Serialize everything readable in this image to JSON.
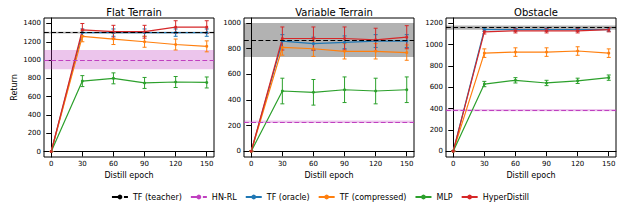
{
  "chart_data": [
    {
      "type": "line",
      "title": "Flat Terrain",
      "x_label": "Distill epoch",
      "y_label": "Return",
      "x": [
        0,
        30,
        60,
        90,
        120,
        150
      ],
      "xlim": [
        -7,
        157
      ],
      "xticks": [
        0,
        30,
        60,
        90,
        120,
        150
      ],
      "ylim": [
        -60,
        1460
      ],
      "yticks": [
        0,
        200,
        400,
        600,
        800,
        1000,
        1200,
        1400
      ],
      "series": [
        {
          "name": "TF (teacher)",
          "type": "hline",
          "color": "#000000",
          "line_style": "dashed",
          "value": 1300,
          "band": [
            1290,
            1310
          ]
        },
        {
          "name": "HN-RL",
          "type": "hline",
          "color": "#c040c0",
          "line_style": "dashed",
          "value": 1000,
          "band": [
            900,
            1110
          ]
        },
        {
          "name": "TF (oracle)",
          "color": "#1f77b4",
          "marker": "circle",
          "values": [
            0,
            1300,
            1300,
            1300,
            1300,
            1300
          ],
          "errors": [
            0,
            40,
            40,
            40,
            40,
            40
          ]
        },
        {
          "name": "TF (compressed)",
          "color": "#ff7f0e",
          "marker": "circle",
          "values": [
            0,
            1260,
            1230,
            1200,
            1170,
            1150
          ],
          "errors": [
            0,
            60,
            60,
            60,
            60,
            60
          ]
        },
        {
          "name": "MLP",
          "color": "#2ca02c",
          "marker": "circle",
          "values": [
            0,
            770,
            800,
            750,
            760,
            755
          ],
          "errors": [
            0,
            60,
            60,
            60,
            60,
            60
          ]
        },
        {
          "name": "HyperDistill",
          "color": "#d62728",
          "marker": "circle",
          "values": [
            0,
            1330,
            1310,
            1310,
            1360,
            1360
          ],
          "errors": [
            0,
            70,
            70,
            70,
            70,
            70
          ]
        }
      ]
    },
    {
      "type": "line",
      "title": "Variable Terrain",
      "x_label": "Distill epoch",
      "x": [
        0,
        30,
        60,
        90,
        120,
        150
      ],
      "xlim": [
        -7,
        157
      ],
      "xticks": [
        0,
        30,
        60,
        90,
        120,
        150
      ],
      "ylim": [
        -45,
        1040
      ],
      "yticks": [
        0,
        200,
        400,
        600,
        800,
        1000
      ],
      "series": [
        {
          "name": "TF (teacher)",
          "type": "hline",
          "color": "#000000",
          "line_style": "dashed",
          "value": 865,
          "band": [
            735,
            1000
          ]
        },
        {
          "name": "HN-RL",
          "type": "hline",
          "color": "#c040c0",
          "line_style": "dashed",
          "value": 230,
          "band": [
            220,
            240
          ]
        },
        {
          "name": "TF (oracle)",
          "color": "#1f77b4",
          "marker": "circle",
          "values": [
            0,
            860,
            840,
            850,
            860,
            860
          ],
          "errors": [
            0,
            50,
            50,
            50,
            50,
            50
          ]
        },
        {
          "name": "TF (compressed)",
          "color": "#ff7f0e",
          "marker": "circle",
          "values": [
            0,
            810,
            800,
            780,
            780,
            770
          ],
          "errors": [
            0,
            60,
            60,
            60,
            60,
            60
          ]
        },
        {
          "name": "MLP",
          "color": "#2ca02c",
          "marker": "circle",
          "values": [
            0,
            470,
            460,
            480,
            470,
            480
          ],
          "errors": [
            0,
            100,
            100,
            100,
            100,
            100
          ]
        },
        {
          "name": "HyperDistill",
          "color": "#d62728",
          "marker": "circle",
          "values": [
            0,
            880,
            880,
            880,
            870,
            890
          ],
          "errors": [
            0,
            90,
            90,
            90,
            90,
            90
          ]
        }
      ]
    },
    {
      "type": "line",
      "title": "Obstacle",
      "x_label": "Distill epoch",
      "legend": "bottom",
      "x": [
        0,
        30,
        60,
        90,
        120,
        150
      ],
      "xlim": [
        -7,
        157
      ],
      "xticks": [
        0,
        30,
        60,
        90,
        120,
        150
      ],
      "ylim": [
        -55,
        1250
      ],
      "yticks": [
        0,
        200,
        400,
        600,
        800,
        1000,
        1200
      ],
      "series": [
        {
          "name": "TF (teacher)",
          "type": "hline",
          "color": "#000000",
          "line_style": "dashed",
          "value": 1160,
          "band": [
            1140,
            1180
          ]
        },
        {
          "name": "HN-RL",
          "type": "hline",
          "color": "#c040c0",
          "line_style": "dashed",
          "value": 385,
          "band": [
            375,
            395
          ]
        },
        {
          "name": "TF (oracle)",
          "color": "#1f77b4",
          "marker": "circle",
          "values": [
            0,
            1140,
            1140,
            1140,
            1140,
            1140
          ],
          "errors": [
            0,
            15,
            15,
            15,
            15,
            15
          ]
        },
        {
          "name": "TF (compressed)",
          "color": "#ff7f0e",
          "marker": "circle",
          "values": [
            0,
            920,
            930,
            930,
            940,
            920
          ],
          "errors": [
            0,
            40,
            40,
            40,
            40,
            40
          ]
        },
        {
          "name": "MLP",
          "color": "#2ca02c",
          "marker": "circle",
          "values": [
            0,
            630,
            665,
            640,
            660,
            690
          ],
          "errors": [
            0,
            25,
            25,
            25,
            25,
            25
          ]
        },
        {
          "name": "HyperDistill",
          "color": "#d62728",
          "marker": "circle",
          "values": [
            0,
            1120,
            1130,
            1130,
            1130,
            1140
          ],
          "errors": [
            0,
            20,
            20,
            20,
            20,
            20
          ]
        }
      ]
    }
  ]
}
